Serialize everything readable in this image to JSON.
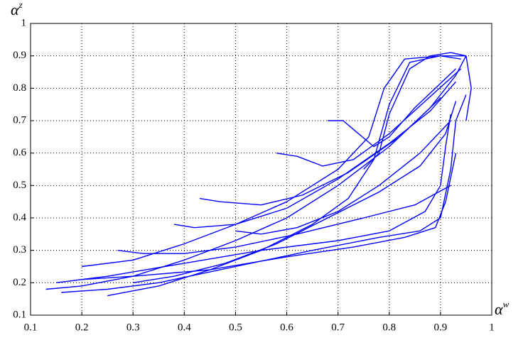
{
  "chart_data": {
    "type": "line",
    "xlabel": {
      "base": "α",
      "sup": "w"
    },
    "ylabel": {
      "base": "α",
      "sup": "z"
    },
    "xlim": [
      0.1,
      1
    ],
    "ylim": [
      0.1,
      1
    ],
    "xticks": [
      0.1,
      0.2,
      0.3,
      0.4,
      0.5,
      0.6,
      0.7,
      0.8,
      0.9,
      1
    ],
    "yticks": [
      0.1,
      0.2,
      0.3,
      0.4,
      0.5,
      0.6,
      0.7,
      0.8,
      0.9,
      1
    ],
    "grid": true,
    "series": [
      {
        "color": "#0000ff",
        "x": [
          0.13,
          0.2,
          0.3,
          0.4,
          0.5,
          0.6,
          0.7,
          0.8,
          0.88,
          0.93,
          0.95
        ],
        "values": [
          0.18,
          0.19,
          0.22,
          0.27,
          0.33,
          0.4,
          0.5,
          0.62,
          0.74,
          0.84,
          0.9
        ]
      },
      {
        "color": "#0000ff",
        "x": [
          0.16,
          0.25,
          0.35,
          0.5,
          0.65,
          0.78,
          0.86,
          0.9,
          0.92,
          0.93,
          0.95
        ],
        "values": [
          0.17,
          0.18,
          0.2,
          0.25,
          0.3,
          0.34,
          0.36,
          0.4,
          0.55,
          0.7,
          0.78
        ]
      },
      {
        "color": "#0000ff",
        "x": [
          0.2,
          0.3,
          0.4,
          0.5,
          0.6,
          0.7,
          0.76,
          0.79,
          0.83,
          0.9,
          0.95
        ],
        "values": [
          0.25,
          0.27,
          0.32,
          0.38,
          0.45,
          0.55,
          0.65,
          0.8,
          0.89,
          0.9,
          0.9
        ]
      },
      {
        "color": "#0000ff",
        "x": [
          0.25,
          0.35,
          0.45,
          0.55,
          0.65,
          0.72,
          0.77,
          0.8,
          0.84,
          0.9,
          0.94
        ],
        "values": [
          0.16,
          0.19,
          0.24,
          0.3,
          0.38,
          0.46,
          0.58,
          0.75,
          0.88,
          0.9,
          0.89
        ]
      },
      {
        "color": "#0000ff",
        "x": [
          0.15,
          0.25,
          0.4,
          0.55,
          0.7,
          0.8,
          0.87,
          0.9,
          0.91,
          0.92
        ],
        "values": [
          0.2,
          0.22,
          0.26,
          0.3,
          0.33,
          0.36,
          0.42,
          0.5,
          0.62,
          0.72
        ]
      },
      {
        "color": "#0000ff",
        "x": [
          0.38,
          0.42,
          0.5,
          0.6,
          0.7,
          0.8,
          0.88,
          0.93
        ],
        "values": [
          0.38,
          0.37,
          0.38,
          0.43,
          0.52,
          0.63,
          0.73,
          0.82
        ]
      },
      {
        "color": "#0000ff",
        "x": [
          0.58,
          0.62,
          0.67,
          0.73,
          0.8,
          0.87,
          0.94
        ],
        "values": [
          0.6,
          0.59,
          0.56,
          0.58,
          0.66,
          0.76,
          0.86
        ]
      },
      {
        "color": "#0000ff",
        "x": [
          0.43,
          0.47,
          0.55,
          0.63,
          0.72,
          0.82,
          0.9
        ],
        "values": [
          0.46,
          0.45,
          0.44,
          0.47,
          0.54,
          0.65,
          0.77
        ]
      },
      {
        "color": "#0000ff",
        "x": [
          0.68,
          0.71,
          0.74,
          0.77,
          0.8,
          0.85,
          0.93
        ],
        "values": [
          0.7,
          0.7,
          0.66,
          0.62,
          0.65,
          0.74,
          0.86
        ]
      },
      {
        "color": "#0000ff",
        "x": [
          0.27,
          0.32,
          0.4,
          0.5,
          0.62,
          0.75,
          0.85,
          0.92
        ],
        "values": [
          0.3,
          0.29,
          0.29,
          0.31,
          0.35,
          0.4,
          0.44,
          0.5
        ]
      },
      {
        "color": "#0000ff",
        "x": [
          0.75,
          0.78,
          0.8,
          0.84,
          0.88,
          0.92,
          0.95,
          0.96,
          0.95
        ],
        "values": [
          0.55,
          0.6,
          0.72,
          0.86,
          0.9,
          0.91,
          0.9,
          0.8,
          0.7
        ]
      },
      {
        "color": "#0000ff",
        "x": [
          0.2,
          0.3,
          0.45,
          0.6,
          0.73,
          0.83,
          0.89,
          0.91,
          0.93
        ],
        "values": [
          0.21,
          0.22,
          0.24,
          0.28,
          0.31,
          0.34,
          0.37,
          0.45,
          0.6
        ]
      },
      {
        "color": "#0000ff",
        "x": [
          0.5,
          0.55,
          0.62,
          0.7,
          0.78,
          0.86,
          0.92
        ],
        "values": [
          0.36,
          0.35,
          0.37,
          0.42,
          0.5,
          0.6,
          0.7
        ]
      },
      {
        "color": "#0000ff",
        "x": [
          0.3,
          0.38,
          0.48,
          0.58,
          0.68,
          0.78,
          0.86,
          0.91,
          0.93
        ],
        "values": [
          0.2,
          0.22,
          0.26,
          0.32,
          0.4,
          0.48,
          0.56,
          0.66,
          0.76
        ]
      }
    ]
  }
}
